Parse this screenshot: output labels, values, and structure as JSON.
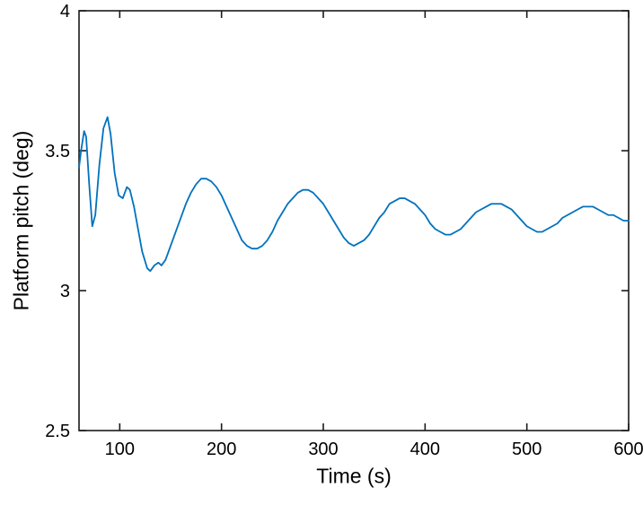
{
  "chart_data": {
    "type": "line",
    "title": "",
    "xlabel": "Time (s)",
    "ylabel": "Platform pitch (deg)",
    "xlim": [
      60,
      600
    ],
    "ylim": [
      2.5,
      4
    ],
    "xticks": [
      100,
      200,
      300,
      400,
      500,
      600
    ],
    "xtick_labels": [
      "100",
      "200",
      "300",
      "400",
      "500",
      "600"
    ],
    "yticks": [
      2.5,
      3,
      3.5,
      4
    ],
    "ytick_labels": [
      "2.5",
      "3",
      "3.5",
      "4"
    ],
    "grid": false,
    "legend_position": "none",
    "line_color": "#0072BD",
    "axis_color": "#1a1a1a",
    "background": "#ffffff",
    "series": [
      {
        "name": "Platform pitch",
        "x": [
          60,
          62,
          65,
          67,
          70,
          73,
          76,
          80,
          84,
          88,
          91,
          95,
          99,
          103,
          107,
          110,
          114,
          118,
          122,
          127,
          130,
          134,
          138,
          141,
          145,
          150,
          155,
          160,
          165,
          170,
          175,
          180,
          185,
          190,
          195,
          200,
          205,
          210,
          215,
          220,
          225,
          230,
          235,
          240,
          245,
          250,
          255,
          260,
          265,
          270,
          275,
          280,
          285,
          290,
          295,
          300,
          305,
          310,
          315,
          320,
          325,
          330,
          335,
          340,
          345,
          350,
          355,
          360,
          365,
          370,
          375,
          380,
          385,
          390,
          395,
          400,
          405,
          410,
          415,
          420,
          425,
          430,
          435,
          440,
          445,
          450,
          455,
          460,
          465,
          470,
          475,
          480,
          485,
          490,
          495,
          500,
          505,
          510,
          515,
          520,
          525,
          530,
          535,
          540,
          545,
          550,
          555,
          560,
          565,
          570,
          575,
          580,
          585,
          590,
          595,
          600
        ],
        "y": [
          3.44,
          3.5,
          3.57,
          3.55,
          3.38,
          3.23,
          3.27,
          3.45,
          3.58,
          3.62,
          3.56,
          3.42,
          3.34,
          3.33,
          3.37,
          3.36,
          3.3,
          3.22,
          3.14,
          3.08,
          3.07,
          3.09,
          3.1,
          3.09,
          3.11,
          3.16,
          3.21,
          3.26,
          3.31,
          3.35,
          3.38,
          3.4,
          3.4,
          3.39,
          3.37,
          3.34,
          3.3,
          3.26,
          3.22,
          3.18,
          3.16,
          3.15,
          3.15,
          3.16,
          3.18,
          3.21,
          3.25,
          3.28,
          3.31,
          3.33,
          3.35,
          3.36,
          3.36,
          3.35,
          3.33,
          3.31,
          3.28,
          3.25,
          3.22,
          3.19,
          3.17,
          3.16,
          3.17,
          3.18,
          3.2,
          3.23,
          3.26,
          3.28,
          3.31,
          3.32,
          3.33,
          3.33,
          3.32,
          3.31,
          3.29,
          3.27,
          3.24,
          3.22,
          3.21,
          3.2,
          3.2,
          3.21,
          3.22,
          3.24,
          3.26,
          3.28,
          3.29,
          3.3,
          3.31,
          3.31,
          3.31,
          3.3,
          3.29,
          3.27,
          3.25,
          3.23,
          3.22,
          3.21,
          3.21,
          3.22,
          3.23,
          3.24,
          3.26,
          3.27,
          3.28,
          3.29,
          3.3,
          3.3,
          3.3,
          3.29,
          3.28,
          3.27,
          3.27,
          3.26,
          3.25,
          3.25
        ]
      }
    ]
  }
}
